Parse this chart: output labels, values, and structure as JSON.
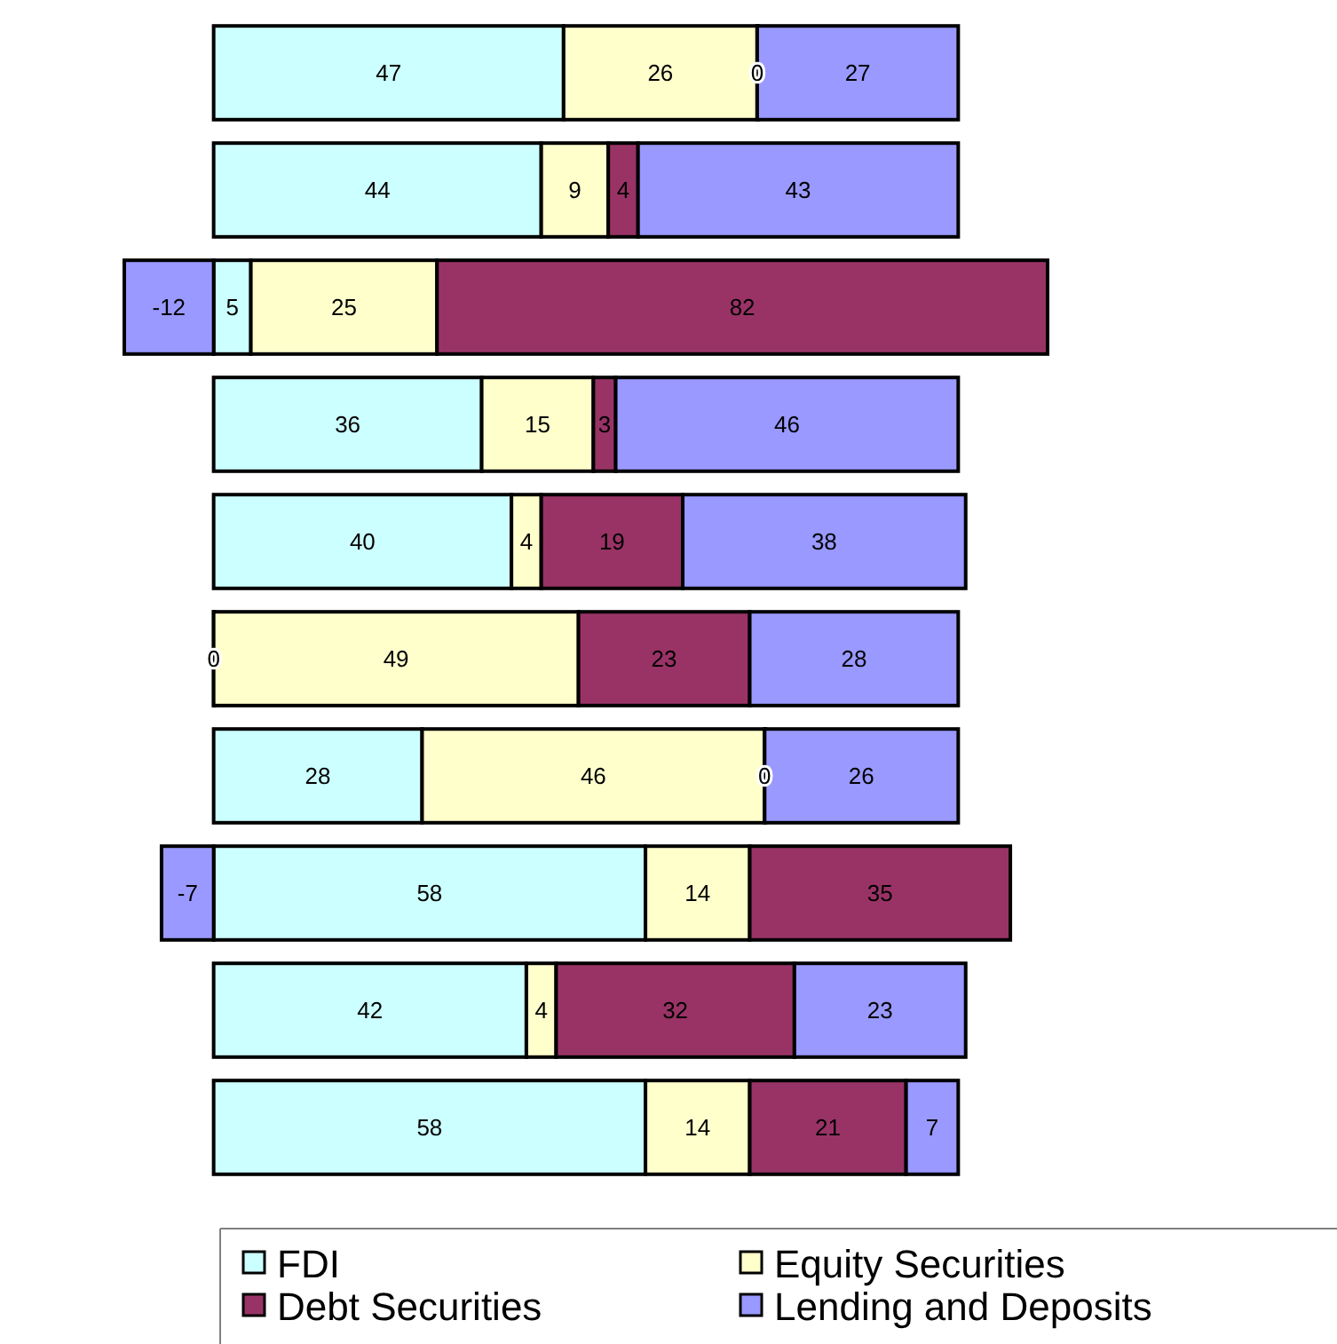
{
  "chart_data": {
    "type": "bar",
    "orientation": "horizontal",
    "stacked": true,
    "legend": "bottom",
    "categories": [
      null,
      null,
      null,
      null,
      null,
      null,
      null,
      null,
      null,
      null
    ],
    "series": [
      {
        "name": "FDI",
        "color": "#ccffff",
        "values": [
          47,
          44,
          5,
          36,
          40,
          0,
          28,
          58,
          42,
          58
        ],
        "value_labels": [
          "47",
          "44",
          "5",
          "36",
          "40",
          "0",
          "28",
          "58",
          "42",
          "58"
        ]
      },
      {
        "name": "Equity Securities",
        "color": "#ffffcc",
        "values": [
          26,
          9,
          25,
          15,
          4,
          49,
          46,
          14,
          4,
          14
        ],
        "value_labels": [
          "26",
          "9",
          "25",
          "15",
          "4",
          "49",
          "46",
          "14",
          "4",
          "14"
        ]
      },
      {
        "name": "Debt Securities",
        "color": "#993366",
        "values": [
          0,
          4,
          82,
          3,
          19,
          23,
          0,
          35,
          32,
          21
        ],
        "value_labels": [
          "0",
          "4",
          "82",
          "3",
          "19",
          "23",
          "0",
          "35",
          "32",
          "21"
        ]
      },
      {
        "name": "Lending and Deposits",
        "color": "#9999ff",
        "values": [
          27,
          43,
          -12,
          46,
          38,
          28,
          26,
          -7,
          23,
          7
        ],
        "value_labels": [
          "27",
          "43",
          "-12",
          "46",
          "38",
          "28",
          "26",
          "-7",
          "23",
          "7"
        ]
      }
    ]
  }
}
